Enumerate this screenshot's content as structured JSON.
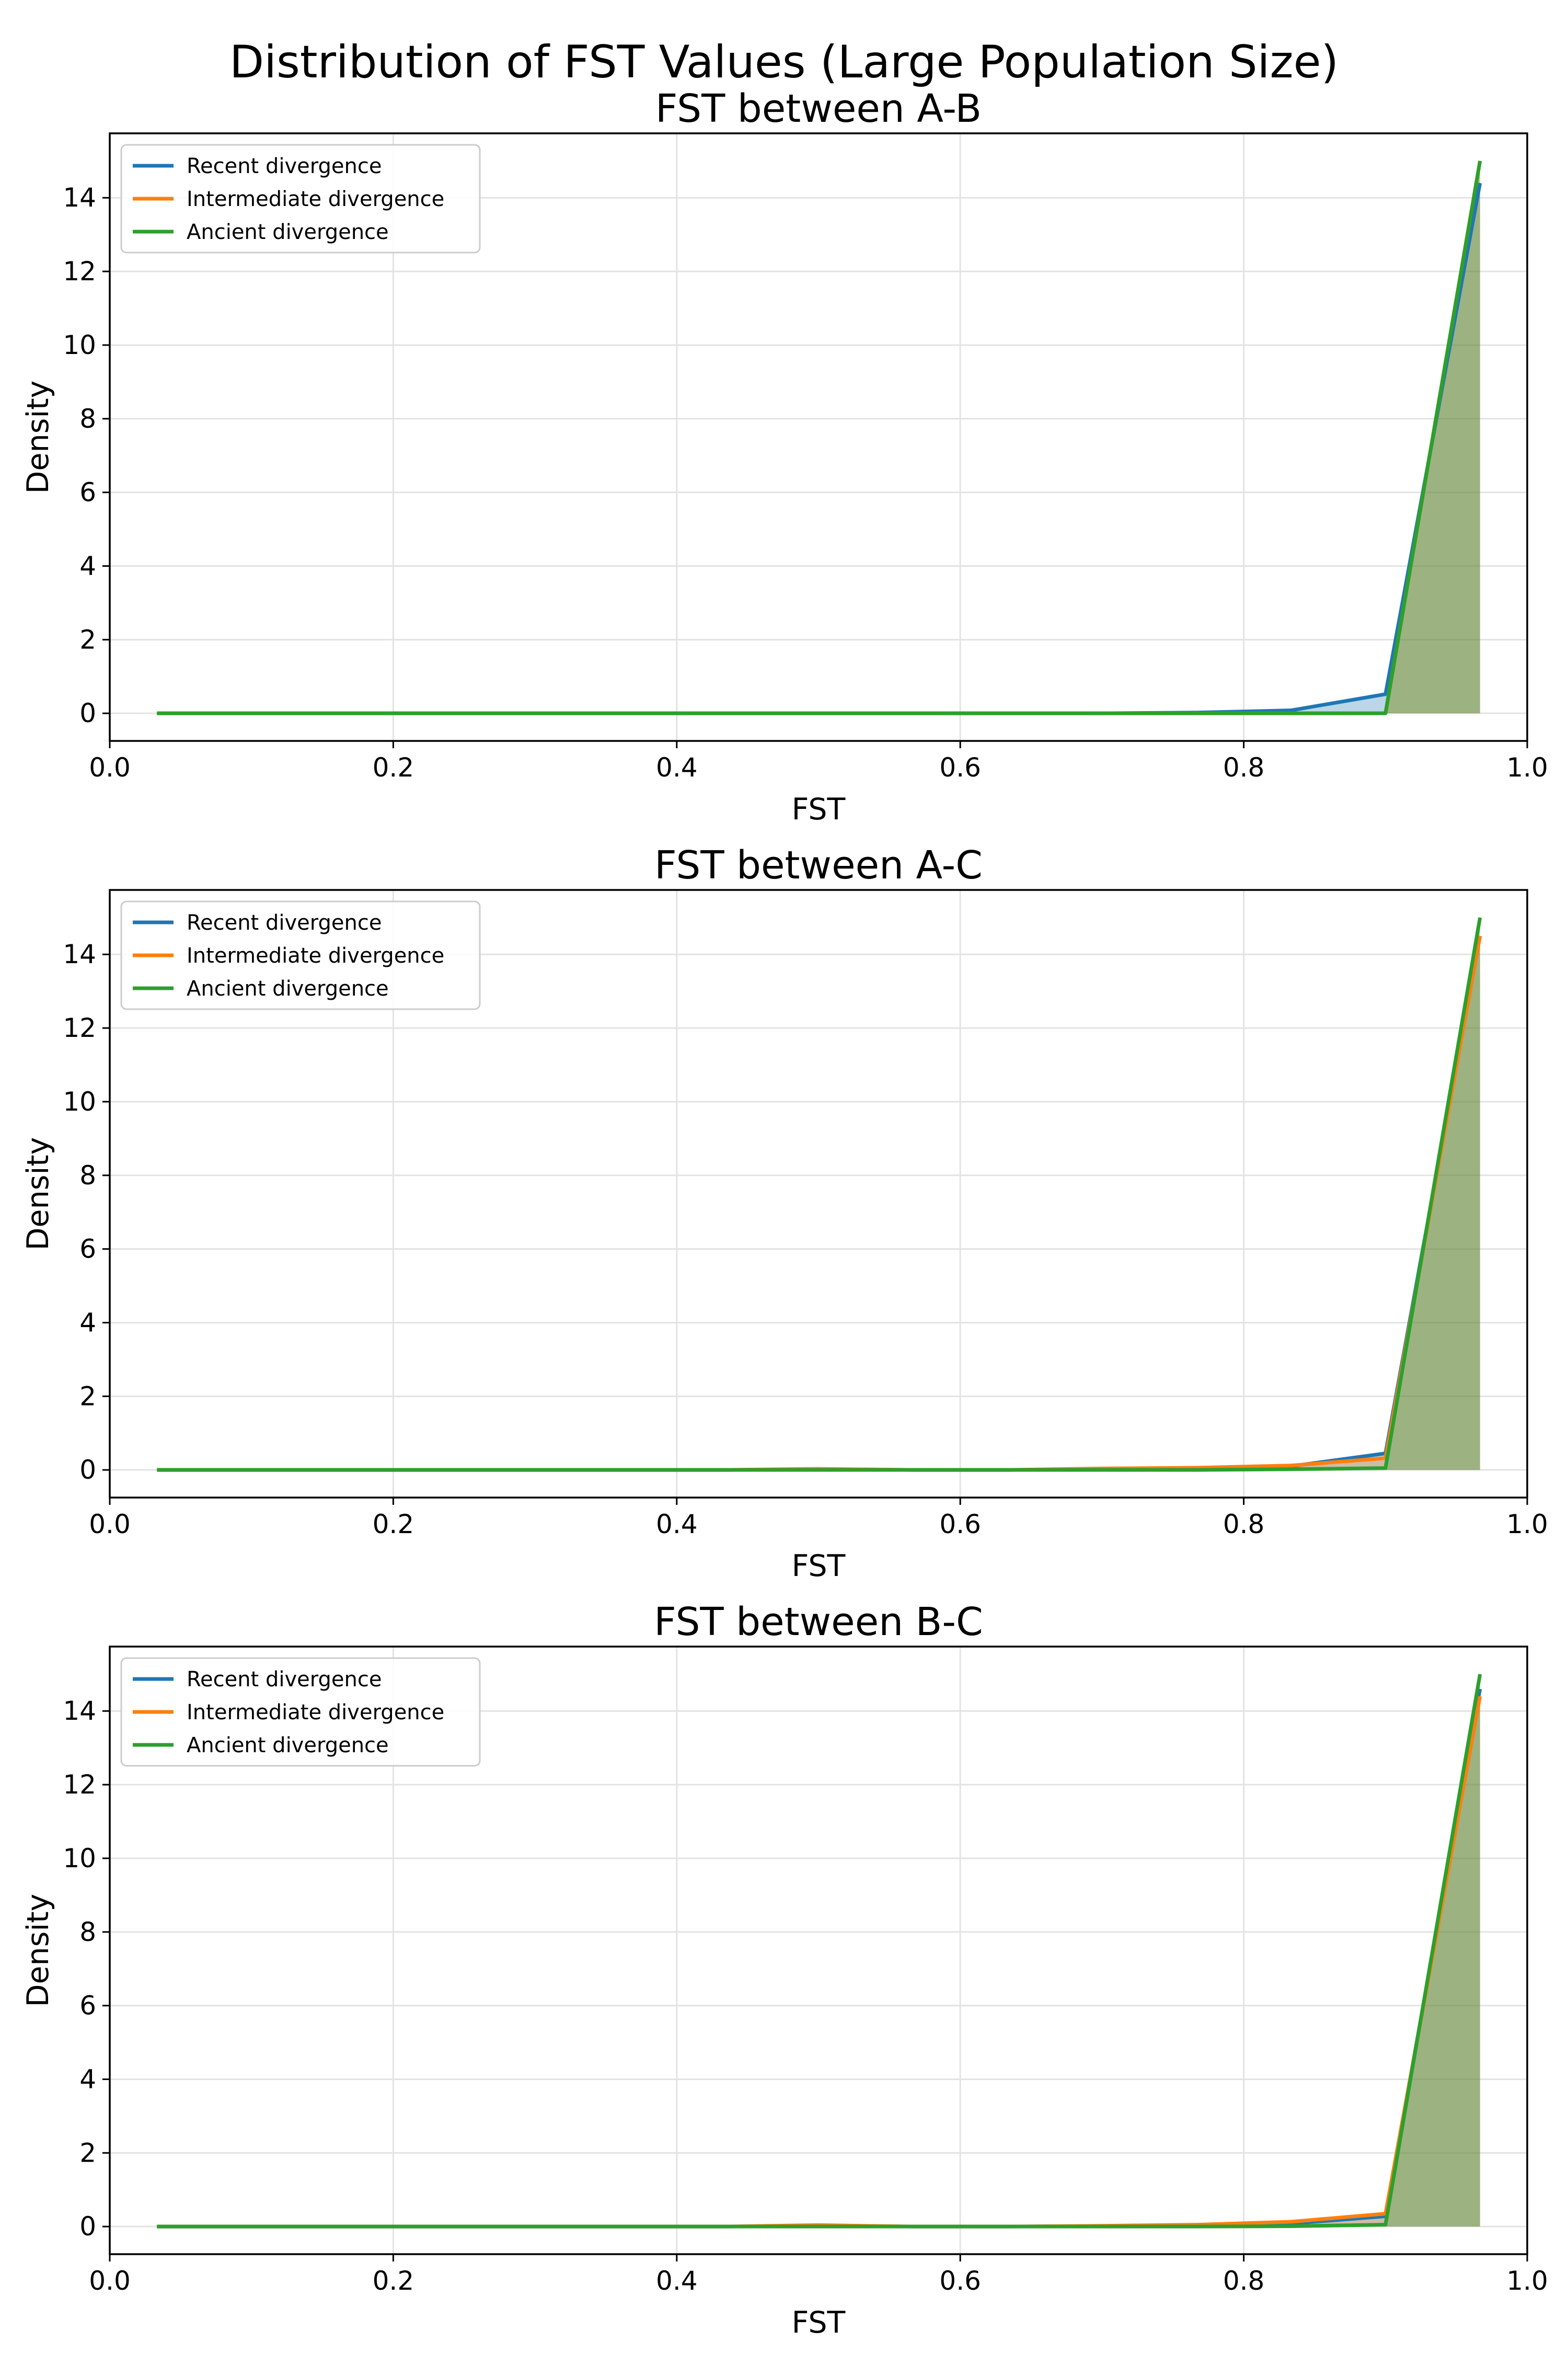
{
  "suptitle": "Distribution of FST Values (Large Population Size)",
  "colors": {
    "Recent divergence": "#1f77b4",
    "Intermediate divergence": "#ff7f0e",
    "Ancient divergence": "#2ca02c"
  },
  "chart_data": [
    {
      "type": "area",
      "title": "FST between A-B",
      "xlabel": "FST",
      "ylabel": "Density",
      "xlim": [
        0.0,
        1.0
      ],
      "ylim": [
        -0.75,
        15.75
      ],
      "x_ticks": [
        "0.0",
        "0.2",
        "0.4",
        "0.6",
        "0.8",
        "1.0"
      ],
      "y_ticks": [
        "0",
        "2",
        "4",
        "6",
        "8",
        "10",
        "12",
        "14"
      ],
      "grid": true,
      "legend_position": "upper-left",
      "x": [
        0.0333,
        0.1,
        0.1667,
        0.2333,
        0.3,
        0.3667,
        0.4333,
        0.5,
        0.5667,
        0.6333,
        0.7,
        0.7667,
        0.8333,
        0.9,
        0.9667
      ],
      "series": [
        {
          "name": "Recent divergence",
          "values": [
            0,
            0,
            0,
            0,
            0,
            0,
            0,
            0,
            0,
            0,
            0,
            0.02,
            0.08,
            0.52,
            14.4
          ]
        },
        {
          "name": "Intermediate divergence",
          "values": [
            0,
            0,
            0,
            0,
            0,
            0,
            0,
            0,
            0,
            0,
            0,
            0,
            0,
            0,
            15.0
          ]
        },
        {
          "name": "Ancient divergence",
          "values": [
            0,
            0,
            0,
            0,
            0,
            0,
            0,
            0,
            0,
            0,
            0,
            0,
            0,
            0,
            15.0
          ]
        }
      ]
    },
    {
      "type": "area",
      "title": "FST between A-C",
      "xlabel": "FST",
      "ylabel": "Density",
      "xlim": [
        0.0,
        1.0
      ],
      "ylim": [
        -0.75,
        15.75
      ],
      "x_ticks": [
        "0.0",
        "0.2",
        "0.4",
        "0.6",
        "0.8",
        "1.0"
      ],
      "y_ticks": [
        "0",
        "2",
        "4",
        "6",
        "8",
        "10",
        "12",
        "14"
      ],
      "grid": true,
      "legend_position": "upper-left",
      "x": [
        0.0333,
        0.1,
        0.1667,
        0.2333,
        0.3,
        0.3667,
        0.4333,
        0.5,
        0.5667,
        0.6333,
        0.7,
        0.7667,
        0.8333,
        0.9,
        0.9667
      ],
      "series": [
        {
          "name": "Recent divergence",
          "values": [
            0,
            0,
            0,
            0,
            0,
            0,
            0,
            0.02,
            0,
            0,
            0.02,
            0.04,
            0.1,
            0.45,
            14.5
          ]
        },
        {
          "name": "Intermediate divergence",
          "values": [
            0,
            0,
            0,
            0,
            0,
            0,
            0,
            0.03,
            0,
            0,
            0.04,
            0.06,
            0.12,
            0.32,
            14.5
          ]
        },
        {
          "name": "Ancient divergence",
          "values": [
            0,
            0,
            0,
            0,
            0,
            0,
            0,
            0,
            0,
            0,
            0,
            0,
            0.02,
            0.05,
            15.0
          ]
        }
      ]
    },
    {
      "type": "area",
      "title": "FST between B-C",
      "xlabel": "FST",
      "ylabel": "Density",
      "xlim": [
        0.0,
        1.0
      ],
      "ylim": [
        -0.75,
        15.75
      ],
      "x_ticks": [
        "0.0",
        "0.2",
        "0.4",
        "0.6",
        "0.8",
        "1.0"
      ],
      "y_ticks": [
        "0",
        "2",
        "4",
        "6",
        "8",
        "10",
        "12",
        "14"
      ],
      "grid": true,
      "legend_position": "upper-left",
      "x": [
        0.0333,
        0.1,
        0.1667,
        0.2333,
        0.3,
        0.3667,
        0.4333,
        0.5,
        0.5667,
        0.6333,
        0.7,
        0.7667,
        0.8333,
        0.9,
        0.9667
      ],
      "series": [
        {
          "name": "Recent divergence",
          "values": [
            0,
            0,
            0,
            0,
            0,
            0,
            0,
            0.02,
            0,
            0,
            0.01,
            0.03,
            0.08,
            0.28,
            14.6
          ]
        },
        {
          "name": "Intermediate divergence",
          "values": [
            0,
            0,
            0,
            0,
            0,
            0,
            0,
            0.04,
            0,
            0,
            0.02,
            0.05,
            0.13,
            0.35,
            14.4
          ]
        },
        {
          "name": "Ancient divergence",
          "values": [
            0,
            0,
            0,
            0,
            0,
            0,
            0,
            0,
            0,
            0,
            0,
            0,
            0.01,
            0.05,
            15.0
          ]
        }
      ]
    }
  ]
}
